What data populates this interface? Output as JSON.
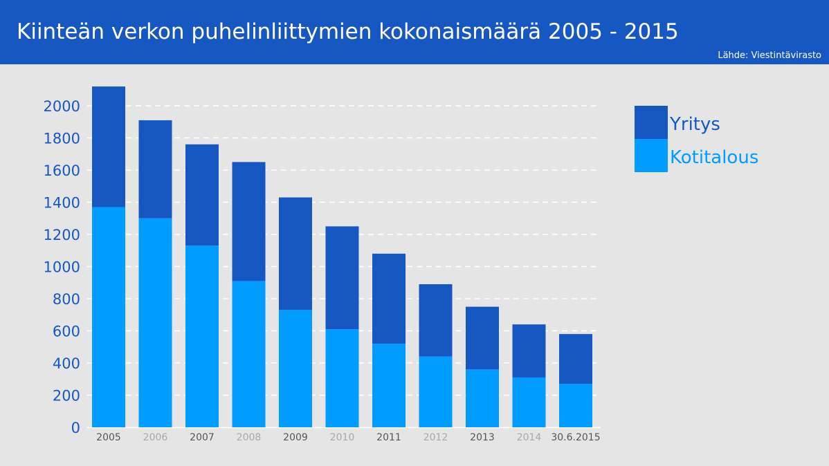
{
  "header": {
    "title": "Kiinteän verkon puhelinliittymien kokonaismäärä 2005 - 2015",
    "source": "Lähde: Viestintävirasto"
  },
  "colors": {
    "header_bg": "#1757c2",
    "yritys": "#1757c2",
    "kotitalous": "#009cff",
    "axis_label": "#1757c2",
    "tick_dark": "#555555",
    "tick_light": "#a9a9a9"
  },
  "chart_data": {
    "type": "bar",
    "stacked": true,
    "categories": [
      "2005",
      "2006",
      "2007",
      "2008",
      "2009",
      "2010",
      "2011",
      "2012",
      "2013",
      "2014",
      "30.6.2015"
    ],
    "series": [
      {
        "name": "Kotitalous",
        "values": [
          1370,
          1300,
          1130,
          910,
          730,
          610,
          520,
          440,
          360,
          310,
          270
        ]
      },
      {
        "name": "Yritys",
        "values": [
          750,
          610,
          630,
          740,
          700,
          640,
          560,
          450,
          390,
          330,
          310
        ]
      }
    ],
    "y_ticks": [
      0,
      200,
      400,
      600,
      800,
      1000,
      1200,
      1400,
      1600,
      1800,
      2000
    ],
    "ylim": [
      0,
      2200
    ],
    "grid": "dashed-horizontal",
    "legend": {
      "placement": "top-right",
      "entries": [
        "Yritys",
        "Kotitalous"
      ]
    }
  }
}
